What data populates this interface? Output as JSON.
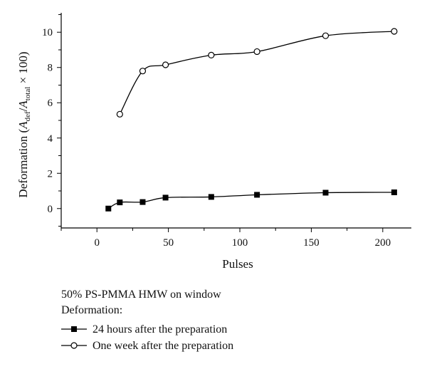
{
  "chart_data": {
    "type": "line",
    "xlabel": "Pulses",
    "ylabel": {
      "main": "Deformation (",
      "a1": "A",
      "sub1": "def",
      "slash": "/",
      "a2": "A",
      "sub2": "total",
      "tail": " × 100)"
    },
    "xlim": [
      -25,
      220
    ],
    "ylim": [
      -1.1,
      11.1
    ],
    "xticks": [
      0,
      50,
      100,
      150,
      200
    ],
    "yticks": [
      0,
      2,
      4,
      6,
      8,
      10
    ],
    "grid": false,
    "legend": {
      "position": "bottom-left",
      "heading_line1": "50% PS-PMMA HMW on window",
      "heading_line2": "Deformation:"
    },
    "series": [
      {
        "name": "24 hours after the preparation",
        "marker": "filled-square",
        "x": [
          8,
          16,
          32,
          48,
          80,
          112,
          160,
          208
        ],
        "y": [
          0.0,
          0.35,
          0.37,
          0.62,
          0.66,
          0.78,
          0.9,
          0.92
        ]
      },
      {
        "name": "One week after the preparation",
        "marker": "open-circle",
        "x": [
          16,
          32,
          48,
          80,
          112,
          160,
          208
        ],
        "y": [
          5.35,
          7.8,
          8.15,
          8.7,
          8.9,
          9.8,
          10.05
        ]
      }
    ]
  }
}
